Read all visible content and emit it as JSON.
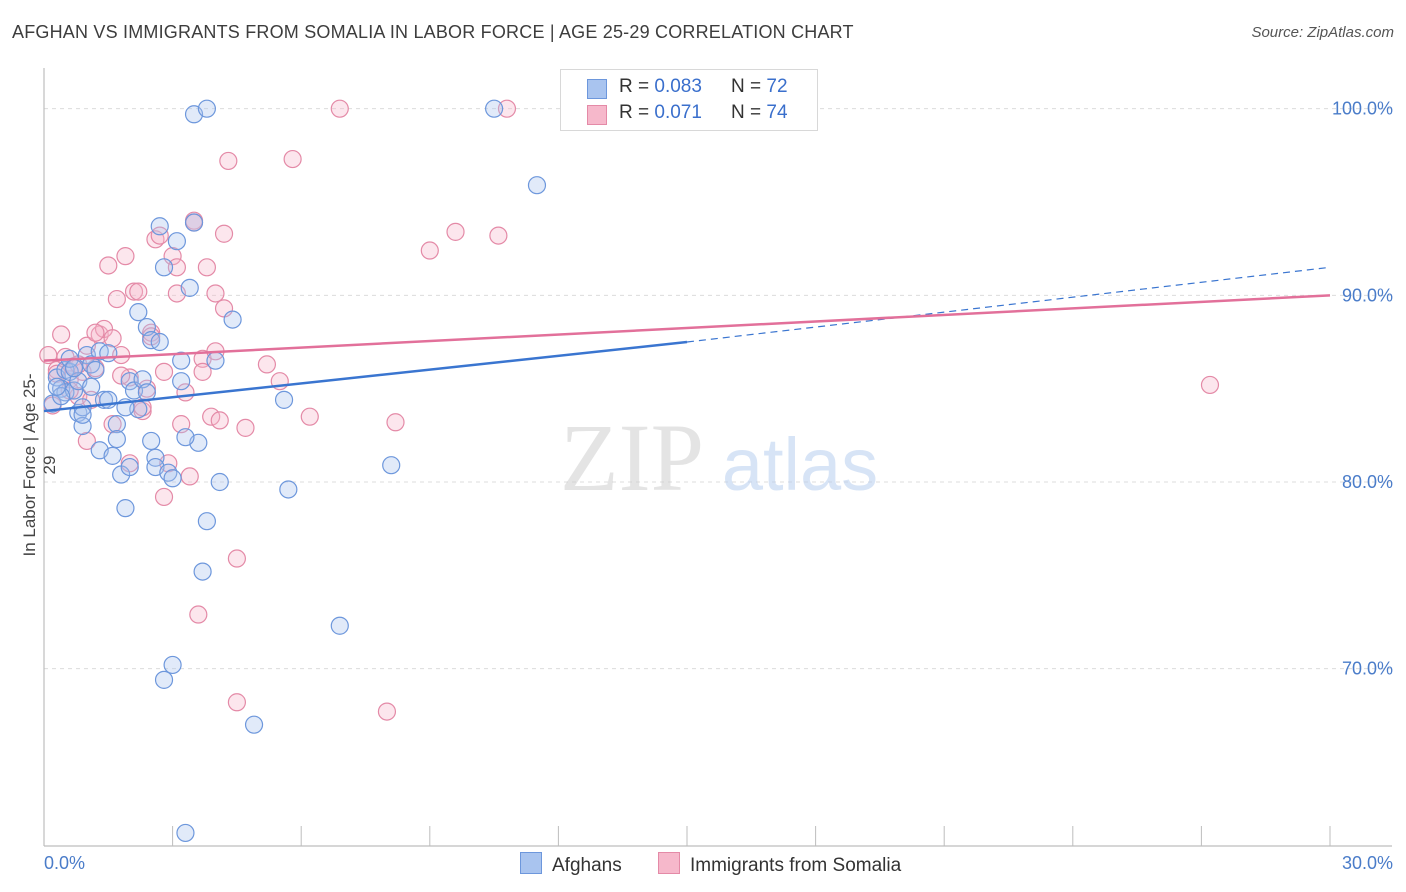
{
  "title": "AFGHAN VS IMMIGRANTS FROM SOMALIA IN LABOR FORCE | AGE 25-29 CORRELATION CHART",
  "source": "Source: ZipAtlas.com",
  "watermark": {
    "zip": "ZIP",
    "atlas": "atlas"
  },
  "legend": {
    "r_label": "R =",
    "n_label": "N =",
    "rows": [
      {
        "name": "Afghans",
        "r": "0.083",
        "n": "72",
        "fill": "#a9c4ef",
        "stroke": "#6d97dc"
      },
      {
        "name": "Immigrants from Somalia",
        "r": "0.071",
        "n": "74",
        "fill": "#f6b8cb",
        "stroke": "#e48aa7"
      }
    ]
  },
  "chart_data": {
    "type": "scatter",
    "title": "AFGHAN VS IMMIGRANTS FROM SOMALIA IN LABOR FORCE | AGE 25-29 CORRELATION CHART",
    "xlabel": "",
    "ylabel": "In Labor Force | Age 25-29",
    "xlim": [
      0,
      30
    ],
    "ylim": [
      60.5,
      102.5
    ],
    "x_tick_labels": [
      "0.0%",
      "30.0%"
    ],
    "y_ticks": [
      70,
      80,
      90,
      100
    ],
    "y_tick_labels": [
      "70.0%",
      "80.0%",
      "90.0%",
      "100.0%"
    ],
    "grid": true,
    "colors": {
      "afghans": "#3a75d0",
      "somalia": "#e2709a"
    },
    "series": [
      {
        "name": "Afghans",
        "trend": {
          "x0": 0.0,
          "y0": 83.8,
          "x1": 15.0,
          "y1": 87.5,
          "dash_to_x": 30.0,
          "dash_to_y": 91.5
        },
        "points": [
          [
            0.2,
            84.2
          ],
          [
            0.3,
            85.6
          ],
          [
            0.4,
            85.0
          ],
          [
            0.5,
            86.0
          ],
          [
            0.5,
            84.8
          ],
          [
            0.6,
            85.9
          ],
          [
            0.7,
            84.9
          ],
          [
            0.8,
            85.4
          ],
          [
            0.8,
            83.7
          ],
          [
            0.9,
            84.0
          ],
          [
            0.9,
            83.0
          ],
          [
            1.0,
            86.8
          ],
          [
            1.1,
            86.3
          ],
          [
            1.2,
            86.0
          ],
          [
            1.3,
            87.0
          ],
          [
            1.3,
            81.7
          ],
          [
            1.4,
            84.4
          ],
          [
            1.5,
            84.4
          ],
          [
            1.6,
            81.4
          ],
          [
            1.7,
            83.1
          ],
          [
            1.7,
            82.3
          ],
          [
            1.8,
            80.4
          ],
          [
            1.9,
            78.6
          ],
          [
            2.0,
            85.4
          ],
          [
            2.0,
            80.8
          ],
          [
            2.1,
            84.9
          ],
          [
            2.2,
            89.1
          ],
          [
            2.2,
            83.9
          ],
          [
            2.3,
            85.5
          ],
          [
            2.4,
            88.3
          ],
          [
            2.5,
            87.6
          ],
          [
            2.5,
            82.2
          ],
          [
            2.6,
            81.3
          ],
          [
            2.6,
            80.8
          ],
          [
            2.7,
            87.5
          ],
          [
            2.7,
            93.7
          ],
          [
            2.8,
            91.5
          ],
          [
            2.9,
            80.5
          ],
          [
            3.0,
            80.2
          ],
          [
            3.0,
            70.2
          ],
          [
            2.8,
            69.4
          ],
          [
            3.1,
            92.9
          ],
          [
            3.2,
            85.4
          ],
          [
            3.2,
            86.5
          ],
          [
            3.3,
            61.2
          ],
          [
            3.4,
            90.4
          ],
          [
            3.5,
            93.9
          ],
          [
            3.5,
            99.7
          ],
          [
            3.6,
            82.1
          ],
          [
            3.7,
            75.2
          ],
          [
            3.8,
            77.9
          ],
          [
            3.8,
            100.0
          ],
          [
            4.0,
            86.5
          ],
          [
            4.1,
            80.0
          ],
          [
            4.4,
            88.7
          ],
          [
            4.9,
            67.0
          ],
          [
            5.6,
            84.4
          ],
          [
            5.7,
            79.6
          ],
          [
            6.9,
            72.3
          ],
          [
            8.1,
            80.9
          ],
          [
            10.5,
            100.0
          ],
          [
            11.5,
            95.9
          ],
          [
            0.4,
            84.6
          ],
          [
            1.1,
            85.1
          ],
          [
            0.6,
            86.6
          ],
          [
            1.9,
            84.0
          ],
          [
            0.9,
            83.6
          ],
          [
            2.4,
            84.8
          ],
          [
            1.5,
            86.9
          ],
          [
            0.7,
            86.1
          ],
          [
            3.3,
            82.4
          ],
          [
            0.3,
            85.1
          ]
        ]
      },
      {
        "name": "Immigrants from Somalia",
        "trend": {
          "x0": 0.0,
          "y0": 86.5,
          "x1": 30.0,
          "y1": 90.0
        },
        "points": [
          [
            0.1,
            86.8
          ],
          [
            0.2,
            84.1
          ],
          [
            0.3,
            86.0
          ],
          [
            0.4,
            87.9
          ],
          [
            0.5,
            86.7
          ],
          [
            0.6,
            85.5
          ],
          [
            0.7,
            86.2
          ],
          [
            0.8,
            84.6
          ],
          [
            0.9,
            85.9
          ],
          [
            1.0,
            82.2
          ],
          [
            1.0,
            87.3
          ],
          [
            1.1,
            84.4
          ],
          [
            1.2,
            86.1
          ],
          [
            1.3,
            87.9
          ],
          [
            1.4,
            88.2
          ],
          [
            1.5,
            91.6
          ],
          [
            1.6,
            87.7
          ],
          [
            1.6,
            83.1
          ],
          [
            1.7,
            89.8
          ],
          [
            1.8,
            86.8
          ],
          [
            1.9,
            92.1
          ],
          [
            2.0,
            81.0
          ],
          [
            2.0,
            85.6
          ],
          [
            2.1,
            90.2
          ],
          [
            2.2,
            90.2
          ],
          [
            2.3,
            83.8
          ],
          [
            2.4,
            85.0
          ],
          [
            2.5,
            88.0
          ],
          [
            2.5,
            87.8
          ],
          [
            2.6,
            93.0
          ],
          [
            2.7,
            93.2
          ],
          [
            2.8,
            85.9
          ],
          [
            2.8,
            79.2
          ],
          [
            2.9,
            81.0
          ],
          [
            3.0,
            92.1
          ],
          [
            3.1,
            91.5
          ],
          [
            3.1,
            90.1
          ],
          [
            3.2,
            83.1
          ],
          [
            3.3,
            84.8
          ],
          [
            3.4,
            80.3
          ],
          [
            3.5,
            94.0
          ],
          [
            3.5,
            93.9
          ],
          [
            3.6,
            72.9
          ],
          [
            3.7,
            86.6
          ],
          [
            3.7,
            85.9
          ],
          [
            3.8,
            91.5
          ],
          [
            3.9,
            83.5
          ],
          [
            4.0,
            90.1
          ],
          [
            4.0,
            87.0
          ],
          [
            4.1,
            83.3
          ],
          [
            4.2,
            89.3
          ],
          [
            4.2,
            93.3
          ],
          [
            4.3,
            97.2
          ],
          [
            4.5,
            75.9
          ],
          [
            4.5,
            68.2
          ],
          [
            4.7,
            82.9
          ],
          [
            5.2,
            86.3
          ],
          [
            5.5,
            85.4
          ],
          [
            5.8,
            97.3
          ],
          [
            6.2,
            83.5
          ],
          [
            6.9,
            100.0
          ],
          [
            8.0,
            67.7
          ],
          [
            8.2,
            83.2
          ],
          [
            9.0,
            92.4
          ],
          [
            9.6,
            93.4
          ],
          [
            10.6,
            93.2
          ],
          [
            10.8,
            100.0
          ],
          [
            27.2,
            85.2
          ],
          [
            0.3,
            85.8
          ],
          [
            1.2,
            88.0
          ],
          [
            0.8,
            86.3
          ],
          [
            2.3,
            84.0
          ],
          [
            0.6,
            84.9
          ],
          [
            1.8,
            85.7
          ]
        ]
      }
    ]
  }
}
